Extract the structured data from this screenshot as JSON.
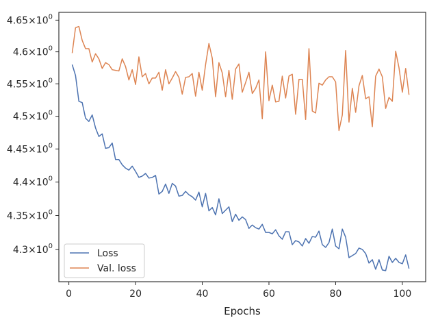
{
  "chart_data": {
    "type": "line",
    "xlabel": "Epochs",
    "ylabel": "",
    "xlim": [
      -3.0,
      107.0
    ],
    "ylim": [
      4.2529,
      4.6624
    ],
    "y_scale": "log",
    "x_ticks": [
      0,
      20,
      40,
      60,
      80,
      100
    ],
    "x_tick_labels": [
      "0",
      "20",
      "40",
      "60",
      "80",
      "100"
    ],
    "y_ticks": [
      4.3,
      4.35,
      4.4,
      4.45,
      4.5,
      4.55,
      4.6,
      4.65
    ],
    "y_tick_labels": [
      {
        "base": "4.3",
        "sup": "0"
      },
      {
        "base": "4.35",
        "sup": "0"
      },
      {
        "base": "4.4",
        "sup": "0"
      },
      {
        "base": "4.45",
        "sup": "0"
      },
      {
        "base": "4.5",
        "sup": "0"
      },
      {
        "base": "4.55",
        "sup": "0"
      },
      {
        "base": "4.6",
        "sup": "0"
      },
      {
        "base": "4.65",
        "sup": "0"
      }
    ],
    "grid": false,
    "legend_position": "lower-left",
    "series": [
      {
        "name": "Loss",
        "color": "#4c72b0",
        "x": [
          1,
          2,
          3,
          4,
          5,
          6,
          7,
          8,
          9,
          10,
          11,
          12,
          13,
          14,
          15,
          16,
          17,
          18,
          19,
          20,
          21,
          22,
          23,
          24,
          25,
          26,
          27,
          28,
          29,
          30,
          31,
          32,
          33,
          34,
          35,
          36,
          37,
          38,
          39,
          40,
          41,
          42,
          43,
          44,
          45,
          46,
          47,
          48,
          49,
          50,
          51,
          52,
          53,
          54,
          55,
          56,
          57,
          58,
          59,
          60,
          61,
          62,
          63,
          64,
          65,
          66,
          67,
          68,
          69,
          70,
          71,
          72,
          73,
          74,
          75,
          76,
          77,
          78,
          79,
          80,
          81,
          82,
          83,
          84,
          85,
          86,
          87,
          88,
          89,
          90,
          91,
          92,
          93,
          94,
          95,
          96,
          97,
          98,
          99,
          100,
          101,
          102
        ],
        "y": [
          4.58,
          4.563,
          4.523,
          4.521,
          4.497,
          4.492,
          4.502,
          4.482,
          4.469,
          4.473,
          4.451,
          4.452,
          4.459,
          4.434,
          4.434,
          4.426,
          4.421,
          4.418,
          4.424,
          4.416,
          4.407,
          4.409,
          4.413,
          4.406,
          4.407,
          4.41,
          4.382,
          4.386,
          4.397,
          4.383,
          4.398,
          4.394,
          4.379,
          4.38,
          4.386,
          4.381,
          4.378,
          4.373,
          4.385,
          4.363,
          4.383,
          4.357,
          4.362,
          4.351,
          4.375,
          4.353,
          4.358,
          4.363,
          4.341,
          4.352,
          4.343,
          4.348,
          4.344,
          4.331,
          4.336,
          4.332,
          4.33,
          4.337,
          4.325,
          4.325,
          4.323,
          4.329,
          4.32,
          4.315,
          4.326,
          4.326,
          4.307,
          4.313,
          4.311,
          4.305,
          4.316,
          4.309,
          4.319,
          4.318,
          4.327,
          4.307,
          4.303,
          4.31,
          4.33,
          4.305,
          4.301,
          4.33,
          4.318,
          4.288,
          4.291,
          4.294,
          4.302,
          4.3,
          4.294,
          4.28,
          4.285,
          4.271,
          4.285,
          4.27,
          4.269,
          4.29,
          4.281,
          4.287,
          4.281,
          4.279,
          4.292,
          4.272
        ]
      },
      {
        "name": "Val. loss",
        "color": "#dd8452",
        "x": [
          1,
          2,
          3,
          4,
          5,
          6,
          7,
          8,
          9,
          10,
          11,
          12,
          13,
          14,
          15,
          16,
          17,
          18,
          19,
          20,
          21,
          22,
          23,
          24,
          25,
          26,
          27,
          28,
          29,
          30,
          31,
          32,
          33,
          34,
          35,
          36,
          37,
          38,
          39,
          40,
          41,
          42,
          43,
          44,
          45,
          46,
          47,
          48,
          49,
          50,
          51,
          52,
          53,
          54,
          55,
          56,
          57,
          58,
          59,
          60,
          61,
          62,
          63,
          64,
          65,
          66,
          67,
          68,
          69,
          70,
          71,
          72,
          73,
          74,
          75,
          76,
          77,
          78,
          79,
          80,
          81,
          82,
          83,
          84,
          85,
          86,
          87,
          88,
          89,
          90,
          91,
          92,
          93,
          94,
          95,
          96,
          97,
          98,
          99,
          100,
          101,
          102
        ],
        "y": [
          4.598,
          4.638,
          4.64,
          4.618,
          4.605,
          4.605,
          4.584,
          4.597,
          4.589,
          4.574,
          4.583,
          4.58,
          4.572,
          4.571,
          4.57,
          4.589,
          4.577,
          4.556,
          4.572,
          4.549,
          4.592,
          4.561,
          4.566,
          4.55,
          4.559,
          4.559,
          4.568,
          4.54,
          4.572,
          4.55,
          4.559,
          4.569,
          4.56,
          4.534,
          4.56,
          4.561,
          4.566,
          4.531,
          4.568,
          4.54,
          4.58,
          4.613,
          4.59,
          4.53,
          4.583,
          4.567,
          4.53,
          4.571,
          4.526,
          4.573,
          4.581,
          4.537,
          4.552,
          4.568,
          4.535,
          4.543,
          4.556,
          4.496,
          4.6,
          4.524,
          4.548,
          4.522,
          4.523,
          4.562,
          4.528,
          4.562,
          4.565,
          4.503,
          4.557,
          4.557,
          4.495,
          4.605,
          4.508,
          4.505,
          4.551,
          4.548,
          4.556,
          4.561,
          4.561,
          4.553,
          4.478,
          4.502,
          4.602,
          4.491,
          4.543,
          4.506,
          4.547,
          4.563,
          4.527,
          4.53,
          4.484,
          4.562,
          4.573,
          4.561,
          4.512,
          4.529,
          4.523,
          4.601,
          4.575,
          4.537,
          4.574,
          4.533
        ]
      }
    ]
  }
}
